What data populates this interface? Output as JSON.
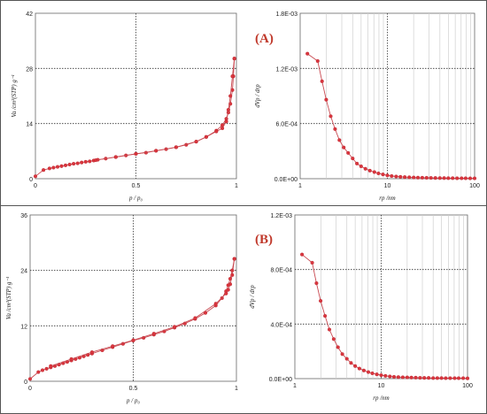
{
  "figure": {
    "panels": [
      {
        "label": "(A)"
      },
      {
        "label": "(B)"
      }
    ]
  },
  "chart_data": [
    {
      "id": "A-isotherm",
      "type": "line",
      "xlabel": "p / p₀",
      "ylabel": "Va /cm³(STP) g⁻¹",
      "xlim": [
        0,
        1
      ],
      "ylim": [
        0,
        42
      ],
      "x_ticks": [
        "0",
        "0.5",
        "1"
      ],
      "y_ticks": [
        "0",
        "14",
        "28",
        "42"
      ],
      "grid": "dotted at midlines",
      "series": [
        {
          "x": [
            0.0,
            0.04,
            0.07,
            0.09,
            0.11,
            0.13,
            0.15,
            0.17,
            0.19,
            0.21,
            0.23,
            0.25,
            0.27,
            0.29,
            0.31,
            0.35,
            0.4,
            0.45,
            0.5,
            0.55,
            0.6,
            0.65,
            0.7,
            0.75,
            0.8,
            0.85,
            0.9,
            0.93,
            0.95,
            0.96,
            0.97,
            0.98,
            0.985,
            0.99
          ],
          "y": [
            0.6,
            2.2,
            2.6,
            2.8,
            3.0,
            3.2,
            3.4,
            3.6,
            3.8,
            3.9,
            4.1,
            4.3,
            4.4,
            4.6,
            4.8,
            5.1,
            5.5,
            5.9,
            6.3,
            6.6,
            7.1,
            7.5,
            8.0,
            8.6,
            9.4,
            10.6,
            12.2,
            13.6,
            15.2,
            16.8,
            19.0,
            22.5,
            26.0,
            30.5
          ]
        },
        {
          "x": [
            0.99,
            0.98,
            0.97,
            0.96,
            0.95,
            0.93,
            0.9,
            0.85,
            0.8,
            0.7,
            0.6,
            0.5,
            0.4,
            0.3
          ],
          "y": [
            30.5,
            26.0,
            21.0,
            17.5,
            14.5,
            12.8,
            12.0,
            10.6,
            9.4,
            8.0,
            7.1,
            6.3,
            5.5,
            4.7
          ]
        }
      ]
    },
    {
      "id": "A-psd",
      "type": "line",
      "xscale": "log",
      "xlabel": "rp /nm",
      "ylabel": "dVp / drp",
      "xlim": [
        1,
        100
      ],
      "ylim": [
        0,
        0.0018
      ],
      "x_ticks": [
        "1",
        "10",
        "100"
      ],
      "y_ticks": [
        "0.0E+00",
        "6.0E-04",
        "1.2E-03",
        "1.8E-03"
      ],
      "grid": "vertical log gridlines, dotted horizontal",
      "series": [
        {
          "x": [
            1.21,
            1.59,
            1.78,
            1.99,
            2.24,
            2.51,
            2.82,
            3.16,
            3.55,
            4.0,
            4.47,
            5.0,
            5.6,
            6.3,
            7.1,
            7.9,
            8.9,
            10,
            11.2,
            12.6,
            14.1,
            15.8,
            17.8,
            20,
            22.4,
            25.1,
            28.2,
            31.6,
            35.5,
            40,
            44.7,
            50,
            56,
            63,
            71,
            79,
            89,
            100
          ],
          "y": [
            0.00136,
            0.00128,
            0.00106,
            0.00086,
            0.00068,
            0.00054,
            0.00042,
            0.00034,
            0.00028,
            0.00022,
            0.000165,
            0.000135,
            0.000108,
            8.8e-05,
            7.2e-05,
            5.8e-05,
            4.6e-05,
            3.6e-05,
            2.9e-05,
            2.4e-05,
            2e-05,
            1.7e-05,
            1.5e-05,
            1.3e-05,
            1.2e-05,
            1.1e-05,
            1e-05,
            9e-06,
            8e-06,
            7e-06,
            7e-06,
            6e-06,
            6e-06,
            5e-06,
            5e-06,
            5e-06,
            4e-06,
            4e-06
          ]
        }
      ]
    },
    {
      "id": "B-isotherm",
      "type": "line",
      "xlabel": "p / p₀",
      "ylabel": "Va /cm³(STP) g⁻¹",
      "xlim": [
        0,
        1
      ],
      "ylim": [
        0,
        36
      ],
      "x_ticks": [
        "0",
        "0.5",
        "1"
      ],
      "y_ticks": [
        "0",
        "12",
        "24",
        "36"
      ],
      "grid": "dotted at midlines",
      "series": [
        {
          "x": [
            0.0,
            0.04,
            0.06,
            0.08,
            0.1,
            0.12,
            0.14,
            0.16,
            0.18,
            0.2,
            0.22,
            0.24,
            0.26,
            0.28,
            0.3,
            0.35,
            0.4,
            0.45,
            0.5,
            0.55,
            0.6,
            0.65,
            0.7,
            0.75,
            0.8,
            0.85,
            0.9,
            0.93,
            0.95,
            0.96,
            0.97,
            0.98,
            0.99
          ],
          "y": [
            0.5,
            2.0,
            2.4,
            2.7,
            3.0,
            3.3,
            3.6,
            3.9,
            4.2,
            4.5,
            4.8,
            5.1,
            5.4,
            5.7,
            6.0,
            6.7,
            7.4,
            8.1,
            8.8,
            9.4,
            10.1,
            10.8,
            11.6,
            12.5,
            13.5,
            14.8,
            16.4,
            18.0,
            19.5,
            20.8,
            22.2,
            24.0,
            26.5
          ]
        },
        {
          "x": [
            0.99,
            0.98,
            0.97,
            0.96,
            0.95,
            0.9,
            0.8,
            0.7,
            0.6,
            0.5,
            0.4,
            0.3,
            0.2,
            0.1
          ],
          "y": [
            26.5,
            23.0,
            21.0,
            19.8,
            19.0,
            16.8,
            13.7,
            11.8,
            10.3,
            8.9,
            7.6,
            6.3,
            4.8,
            3.3
          ]
        }
      ]
    },
    {
      "id": "B-psd",
      "type": "line",
      "xscale": "log",
      "xlabel": "rp /nm",
      "ylabel": "dVp / drp",
      "xlim": [
        1,
        100
      ],
      "ylim": [
        0,
        0.0012
      ],
      "x_ticks": [
        "1",
        "10",
        "100"
      ],
      "y_ticks": [
        "0.0E+00",
        "4.0E-04",
        "8.0E-04",
        "1.2E-03"
      ],
      "grid": "vertical log gridlines, dotted horizontal",
      "series": [
        {
          "x": [
            1.21,
            1.59,
            1.78,
            1.99,
            2.24,
            2.51,
            2.82,
            3.16,
            3.55,
            4.0,
            4.47,
            5.0,
            5.6,
            6.3,
            7.1,
            7.9,
            8.9,
            10,
            11.2,
            12.6,
            14.1,
            15.8,
            17.8,
            20,
            22.4,
            25.1,
            28.2,
            31.6,
            35.5,
            40,
            44.7,
            50,
            56,
            63,
            71,
            79,
            89,
            100
          ],
          "y": [
            0.00091,
            0.00085,
            0.0007,
            0.00057,
            0.00046,
            0.00036,
            0.00029,
            0.00023,
            0.00018,
            0.000145,
            0.000115,
            9.2e-05,
            7.4e-05,
            6e-05,
            4.8e-05,
            3.9e-05,
            3.1e-05,
            2.5e-05,
            2e-05,
            1.6e-05,
            1.3e-05,
            1.1e-05,
            1e-05,
            9e-06,
            8e-06,
            7e-06,
            6e-06,
            5e-06,
            5e-06,
            4e-06,
            4e-06,
            4e-06,
            3e-06,
            3e-06,
            3e-06,
            3e-06,
            3e-06,
            2e-06
          ]
        }
      ]
    }
  ]
}
